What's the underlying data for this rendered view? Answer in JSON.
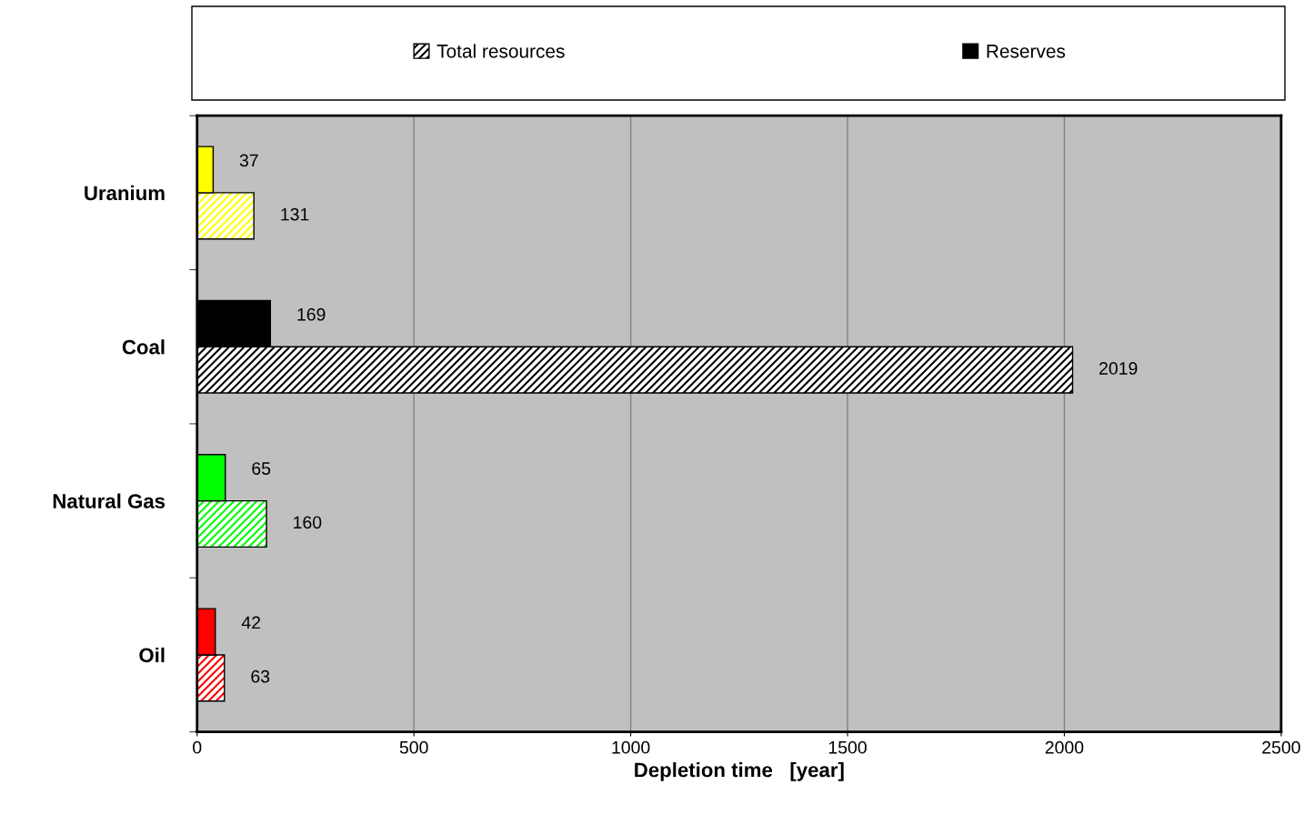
{
  "chart_data": {
    "type": "bar",
    "orientation": "horizontal",
    "xlabel": "Depletion time   [year]",
    "categories": [
      "Uranium",
      "Coal",
      "Natural Gas",
      "Oil"
    ],
    "series": [
      {
        "name": "Total resources",
        "colors": [
          "#ffff00",
          "#000000",
          "#00ff00",
          "#ff0000"
        ],
        "values": [
          131,
          2019,
          160,
          63
        ]
      },
      {
        "name": "Reserves",
        "colors": [
          "#ffff00",
          "#000000",
          "#00ff00",
          "#ff0000"
        ],
        "values": [
          37,
          169,
          65,
          42
        ]
      }
    ],
    "xlim": [
      0,
      2500
    ],
    "xticks": [
      0,
      500,
      1000,
      1500,
      2000,
      2500
    ],
    "grid": "x",
    "legend": "top",
    "data_labels": true
  }
}
